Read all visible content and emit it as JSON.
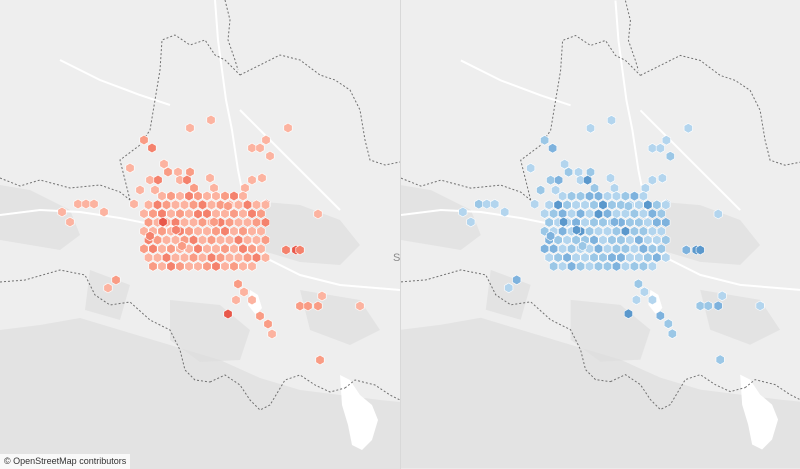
{
  "attribution": {
    "symbol": "©",
    "text": "OpenStreetMap contributors"
  },
  "map_labels": {
    "partial_place_label": "S"
  },
  "colors": {
    "background": "#eeeeee",
    "land_shade": "#dcdcdc",
    "border": "#707070",
    "road": "#ffffff",
    "water": "#ffffff",
    "left_scale": [
      "#fcd3c6",
      "#fcb3a0",
      "#f99c85",
      "#f4826d",
      "#e8584a"
    ],
    "right_scale": [
      "#c9e0f2",
      "#b3d5ee",
      "#9bc7e6",
      "#7eb2dd",
      "#5b98cc"
    ]
  },
  "maps": [
    {
      "name": "map-left",
      "scale": "left_scale"
    },
    {
      "name": "map-right",
      "scale": "right_scale"
    }
  ]
}
